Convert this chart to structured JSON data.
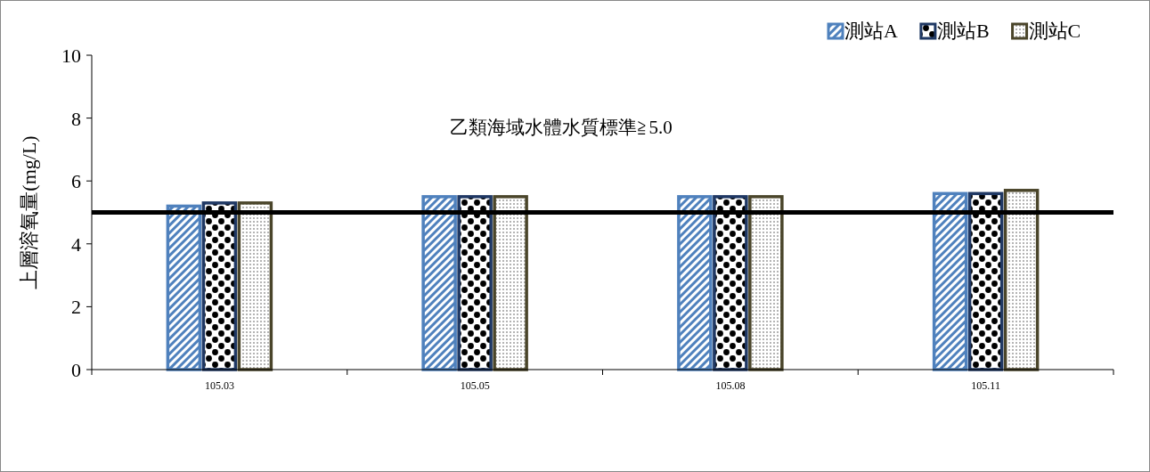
{
  "chart_data": {
    "type": "bar",
    "ylabel": "上層溶氧量(mg/L)",
    "categories": [
      "105.03",
      "105.05",
      "105.08",
      "105.11"
    ],
    "series": [
      {
        "name": "測站A",
        "color": "#4f81bd",
        "values": [
          5.2,
          5.5,
          5.5,
          5.6
        ]
      },
      {
        "name": "測站B",
        "color": "#1f3864",
        "values": [
          5.3,
          5.5,
          5.5,
          5.6
        ]
      },
      {
        "name": "測站C",
        "color": "#4a452a",
        "values": [
          5.3,
          5.5,
          5.5,
          5.7
        ]
      }
    ],
    "ylim": [
      0,
      10
    ],
    "yticks": [
      0,
      2,
      4,
      6,
      8,
      10
    ],
    "ref_lines": [
      {
        "axis": "y",
        "value": 5.0,
        "color": "#000000"
      }
    ],
    "annotations": [
      "乙類海域水體水質標準≧5.0"
    ],
    "legend": "top right"
  }
}
